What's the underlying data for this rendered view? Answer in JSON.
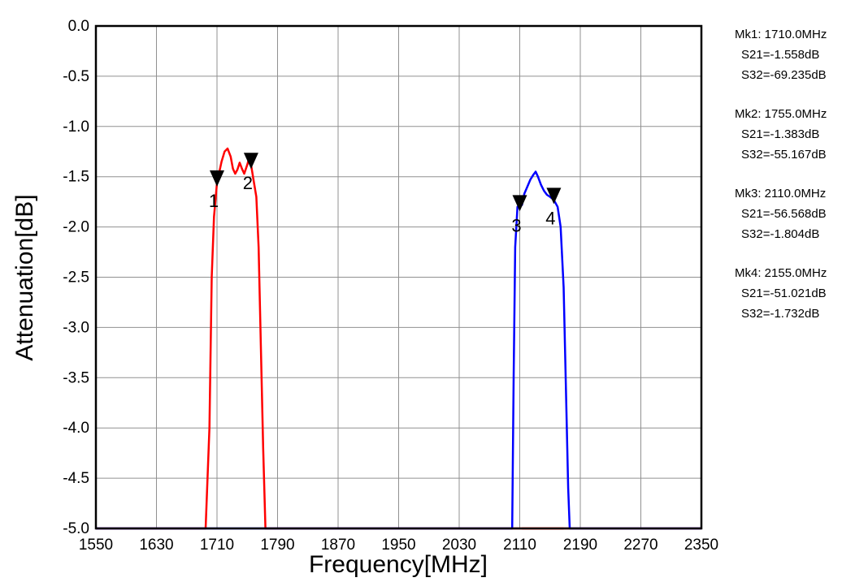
{
  "chart_data": {
    "type": "line",
    "title": "",
    "xlabel": "Frequency[MHz]",
    "ylabel": "Attenuation[dB]",
    "xlim": [
      1550,
      2350
    ],
    "ylim": [
      -5.0,
      0.0
    ],
    "grid": true,
    "xticks": [
      "1550",
      "1630",
      "1710",
      "1790",
      "1870",
      "1950",
      "2030",
      "2110",
      "2190",
      "2270",
      "2350"
    ],
    "yticks": [
      "0.0",
      "-0.5",
      "-1.0",
      "-1.5",
      "-2.0",
      "-2.5",
      "-3.0",
      "-3.5",
      "-4.0",
      "-4.5",
      "-5.0"
    ],
    "series": [
      {
        "name": "S21",
        "color": "#ff0000",
        "points": [
          [
            1550,
            -5.0
          ],
          [
            1695,
            -5.0
          ],
          [
            1700,
            -4.0
          ],
          [
            1703,
            -2.5
          ],
          [
            1706,
            -1.9
          ],
          [
            1710,
            -1.56
          ],
          [
            1716,
            -1.35
          ],
          [
            1720,
            -1.25
          ],
          [
            1724,
            -1.22
          ],
          [
            1728,
            -1.3
          ],
          [
            1731,
            -1.42
          ],
          [
            1734,
            -1.47
          ],
          [
            1737,
            -1.43
          ],
          [
            1740,
            -1.36
          ],
          [
            1743,
            -1.42
          ],
          [
            1746,
            -1.47
          ],
          [
            1750,
            -1.38
          ],
          [
            1753,
            -1.3
          ],
          [
            1755,
            -1.38
          ],
          [
            1758,
            -1.52
          ],
          [
            1762,
            -1.7
          ],
          [
            1765,
            -2.2
          ],
          [
            1768,
            -3.2
          ],
          [
            1771,
            -4.2
          ],
          [
            1774,
            -5.0
          ],
          [
            2350,
            -5.0
          ]
        ]
      },
      {
        "name": "S32",
        "color": "#0000ff",
        "points": [
          [
            1550,
            -5.0
          ],
          [
            2100,
            -5.0
          ],
          [
            2102,
            -3.5
          ],
          [
            2104,
            -2.2
          ],
          [
            2107,
            -1.8
          ],
          [
            2110,
            -1.8
          ],
          [
            2113,
            -1.78
          ],
          [
            2116,
            -1.67
          ],
          [
            2120,
            -1.6
          ],
          [
            2124,
            -1.53
          ],
          [
            2128,
            -1.48
          ],
          [
            2131,
            -1.45
          ],
          [
            2134,
            -1.5
          ],
          [
            2138,
            -1.58
          ],
          [
            2142,
            -1.64
          ],
          [
            2146,
            -1.68
          ],
          [
            2150,
            -1.7
          ],
          [
            2155,
            -1.73
          ],
          [
            2160,
            -1.8
          ],
          [
            2164,
            -2.0
          ],
          [
            2168,
            -2.6
          ],
          [
            2171,
            -3.6
          ],
          [
            2174,
            -4.6
          ],
          [
            2176,
            -5.0
          ],
          [
            2350,
            -5.0
          ]
        ]
      }
    ],
    "markers": [
      {
        "label": "1",
        "x": 1710,
        "y": -1.558
      },
      {
        "label": "2",
        "x": 1755,
        "y": -1.383
      },
      {
        "label": "3",
        "x": 2110,
        "y": -1.804
      },
      {
        "label": "4",
        "x": 2155,
        "y": -1.732
      }
    ]
  },
  "legend": [
    {
      "mk": "Mk1: 1710.0MHz",
      "s21": "S21=-1.558dB",
      "s32": "S32=-69.235dB"
    },
    {
      "mk": "Mk2: 1755.0MHz",
      "s21": "S21=-1.383dB",
      "s32": "S32=-55.167dB"
    },
    {
      "mk": "Mk3: 2110.0MHz",
      "s21": "S21=-56.568dB",
      "s32": "S32=-1.804dB"
    },
    {
      "mk": "Mk4: 2155.0MHz",
      "s21": "S21=-51.021dB",
      "s32": "S32=-1.732dB"
    }
  ]
}
